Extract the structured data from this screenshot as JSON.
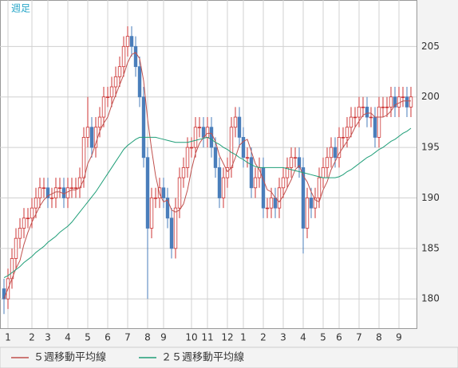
{
  "chart_data": {
    "type": "candlestick",
    "period_label": "週足",
    "categories": [
      null,
      "1",
      null,
      null,
      null,
      null,
      null,
      "2",
      null,
      null,
      null,
      "3",
      null,
      null,
      null,
      null,
      "4",
      null,
      null,
      null,
      null,
      "5",
      null,
      null,
      null,
      null,
      "6",
      null,
      null,
      null,
      null,
      "7",
      null,
      null,
      null,
      null,
      "8",
      null,
      null,
      null,
      "9",
      null,
      null,
      null,
      null,
      null,
      null,
      "10",
      null,
      null,
      null,
      "11",
      null,
      null,
      null,
      null,
      "12",
      null,
      null,
      null,
      "1",
      null,
      null,
      null,
      null,
      "2",
      null,
      null,
      null,
      null,
      "3",
      null,
      null,
      null,
      null,
      "4",
      null,
      null,
      null,
      null,
      "5",
      null,
      null,
      null,
      "6",
      null,
      null,
      null,
      null,
      "7",
      null,
      null,
      null,
      null,
      "8",
      null,
      null,
      null,
      null,
      "9",
      null,
      null,
      null
    ],
    "open": [
      181,
      180,
      182,
      184,
      186,
      187,
      188,
      188,
      189,
      190,
      191,
      191,
      190,
      190,
      191,
      191,
      190,
      191,
      191,
      191,
      192,
      196,
      197,
      195,
      197,
      198,
      200,
      200,
      201,
      202,
      203,
      205,
      206,
      205,
      203,
      200,
      194,
      187,
      190,
      190,
      191,
      190,
      188,
      185,
      189,
      192,
      193,
      195,
      195,
      197,
      197,
      196,
      197,
      195,
      193,
      190,
      192,
      193,
      197,
      198,
      196,
      194,
      194,
      191,
      192,
      193,
      189,
      189,
      190,
      189,
      191,
      192,
      193,
      194,
      194,
      193,
      187,
      190,
      189,
      190,
      192,
      193,
      194,
      195,
      194,
      196,
      196,
      197,
      198,
      198,
      199,
      199,
      198,
      198,
      196,
      199,
      199,
      199,
      200,
      199,
      200,
      200,
      199
    ],
    "high": [
      182,
      183,
      185,
      187,
      188,
      189,
      189,
      190,
      191,
      192,
      192,
      192,
      191,
      192,
      192,
      192,
      192,
      192,
      192,
      193,
      197,
      200,
      198,
      198,
      199,
      201,
      201,
      202,
      203,
      204,
      206,
      207,
      207,
      206,
      204,
      201,
      195,
      191,
      191,
      192,
      192,
      191,
      189,
      190,
      193,
      194,
      196,
      196,
      198,
      198,
      198,
      198,
      198,
      196,
      194,
      193,
      194,
      198,
      199,
      199,
      197,
      195,
      195,
      193,
      194,
      194,
      190,
      191,
      191,
      192,
      193,
      194,
      195,
      195,
      195,
      194,
      191,
      191,
      191,
      193,
      194,
      195,
      196,
      196,
      197,
      197,
      198,
      199,
      199,
      200,
      200,
      200,
      199,
      199,
      200,
      200,
      200,
      201,
      201,
      201,
      201,
      201,
      201
    ],
    "low": [
      178.5,
      179,
      181,
      183,
      185,
      186,
      187,
      187,
      188,
      189,
      190,
      189,
      189,
      189,
      190,
      189,
      189,
      190,
      190,
      190,
      191,
      195,
      194,
      194,
      196,
      197,
      199,
      199,
      200,
      201,
      202,
      204,
      204,
      202,
      199,
      193,
      180,
      186,
      189,
      189,
      189,
      187,
      184,
      184,
      188,
      191,
      192,
      194,
      194,
      196,
      195,
      195,
      194,
      192,
      189,
      189,
      191,
      192,
      196,
      195,
      193,
      193,
      190,
      190,
      191,
      188,
      188,
      188,
      188,
      188,
      190,
      191,
      192,
      193,
      192,
      184.5,
      186,
      188,
      188,
      189,
      191,
      192,
      193,
      193,
      193,
      195,
      195,
      196,
      197,
      197,
      198,
      197,
      197,
      195,
      195,
      198,
      198,
      198,
      198,
      198,
      199,
      198,
      198
    ],
    "close": [
      180,
      182,
      184,
      186,
      187,
      188,
      188,
      189,
      190,
      191,
      191,
      190,
      190,
      191,
      191,
      190,
      191,
      191,
      191,
      192,
      196,
      197,
      195,
      197,
      198,
      200,
      200,
      201,
      202,
      203,
      205,
      206,
      205,
      203,
      200,
      194,
      187,
      190,
      190,
      191,
      190,
      188,
      185,
      189,
      192,
      193,
      195,
      195,
      197,
      197,
      196,
      197,
      195,
      193,
      190,
      192,
      193,
      197,
      198,
      196,
      194,
      194,
      191,
      192,
      193,
      189,
      189,
      190,
      189,
      191,
      192,
      193,
      194,
      194,
      193,
      187,
      190,
      189,
      190,
      192,
      193,
      194,
      195,
      194,
      196,
      196,
      197,
      198,
      198,
      199,
      199,
      198,
      198,
      196,
      199,
      199,
      199,
      200,
      199,
      200,
      200,
      199,
      200
    ],
    "up_color": "#cc3333",
    "down_color": "#4a7ebb",
    "series": [
      {
        "name": "５週移動平均線",
        "color": "#c0504d",
        "values": [
          180,
          181,
          182,
          183,
          183.8,
          185.4,
          186.6,
          187.6,
          188.4,
          189.2,
          189.8,
          190.2,
          190.4,
          190.6,
          190.6,
          190.4,
          190.6,
          190.8,
          190.8,
          191,
          191.8,
          193.4,
          194.2,
          195.4,
          196.6,
          197.4,
          198,
          199.2,
          200.2,
          201.2,
          202.2,
          203.4,
          204.2,
          204.4,
          203.8,
          201.6,
          197.8,
          194.8,
          192.2,
          190.4,
          189.6,
          189.8,
          188.8,
          188.6,
          188.8,
          189.4,
          190.8,
          192.8,
          194.4,
          195.4,
          196,
          196.4,
          196.4,
          195.6,
          194.2,
          193.4,
          192.6,
          193,
          194,
          195.2,
          195.6,
          195.8,
          194.6,
          193.4,
          192.8,
          191.8,
          190.8,
          190.6,
          190,
          189.6,
          190.2,
          191,
          191.8,
          192.8,
          193.2,
          192.2,
          191.6,
          190.6,
          189.8,
          189.6,
          190.8,
          191.6,
          192.8,
          193.6,
          194.4,
          195,
          195.6,
          196.2,
          197,
          197.6,
          198.2,
          198.4,
          198.4,
          198,
          198,
          198,
          198.2,
          198.6,
          199.2,
          199.4,
          199.6,
          199.6,
          199.6
        ]
      },
      {
        "name": "２５週移動平均線",
        "color": "#1f9e78",
        "values": [
          182.1,
          182.3,
          182.6,
          182.9,
          183.2,
          183.6,
          183.9,
          184.2,
          184.6,
          184.9,
          185.2,
          185.6,
          185.9,
          186.2,
          186.6,
          186.9,
          187.2,
          187.6,
          188.1,
          188.6,
          189.1,
          189.6,
          190.1,
          190.6,
          191.2,
          191.8,
          192.4,
          193,
          193.6,
          194.2,
          194.8,
          195.2,
          195.5,
          195.8,
          196,
          196,
          196,
          196,
          196,
          195.9,
          195.8,
          195.7,
          195.6,
          195.5,
          195.5,
          195.5,
          195.5,
          195.6,
          195.7,
          195.8,
          195.9,
          196,
          195.8,
          195.5,
          195.3,
          195,
          194.8,
          194.5,
          194.3,
          194,
          193.8,
          193.5,
          193.3,
          193.1,
          193,
          193,
          193,
          193,
          193,
          193,
          193,
          192.9,
          192.8,
          192.7,
          192.6,
          192.5,
          192.4,
          192.3,
          192.2,
          192.1,
          192,
          192,
          192,
          192,
          192.1,
          192.3,
          192.6,
          192.8,
          193.1,
          193.4,
          193.7,
          194,
          194.2,
          194.5,
          194.8,
          195,
          195.3,
          195.6,
          195.8,
          196.1,
          196.4,
          196.6,
          196.9
        ]
      }
    ],
    "ylim": [
      177.1,
      209.6
    ],
    "yticks": [
      180,
      185,
      190,
      195,
      200,
      205
    ],
    "grid": true
  }
}
